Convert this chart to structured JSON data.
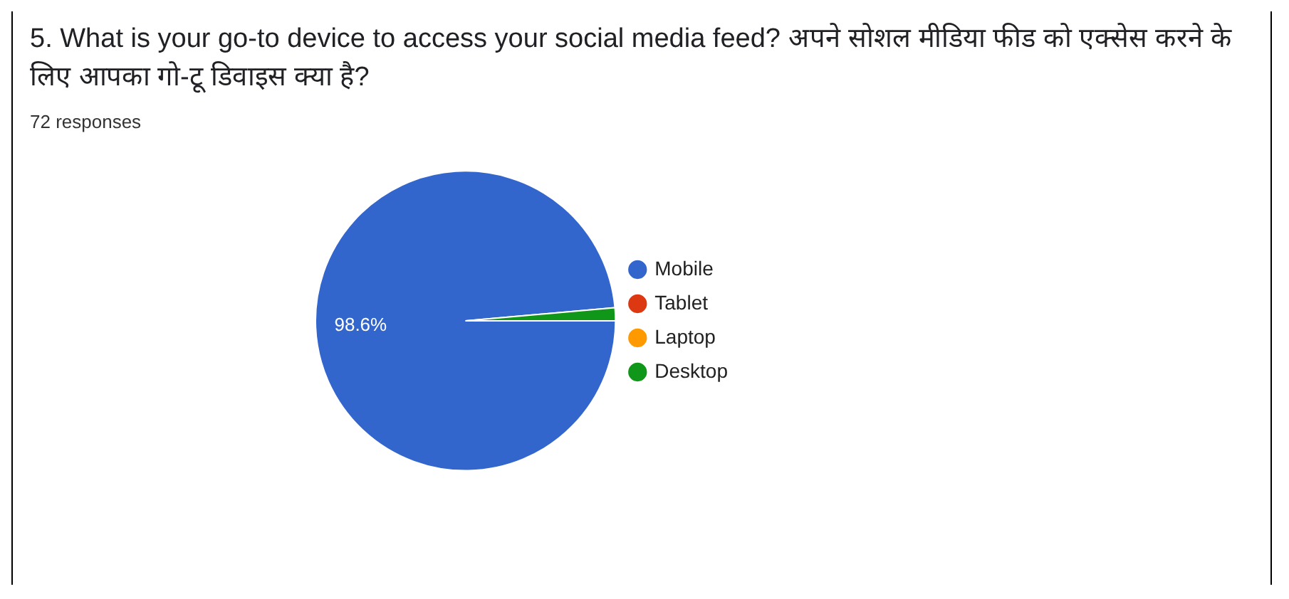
{
  "chart_data": {
    "type": "pie",
    "title": "5. What is your go-to device to access your social media feed? अपने सोशल मीडिया फीड को एक्सेस करने के लिए आपका गो-टू डिवाइस क्या है?",
    "subtitle": "72 responses",
    "categories": [
      "Mobile",
      "Tablet",
      "Laptop",
      "Desktop"
    ],
    "values": [
      98.6,
      0,
      0,
      1.4
    ],
    "colors": [
      "#3366cc",
      "#dc3912",
      "#ff9900",
      "#109618"
    ],
    "value_labels": [
      "98.6%",
      null,
      null,
      null
    ],
    "legend": "right"
  }
}
